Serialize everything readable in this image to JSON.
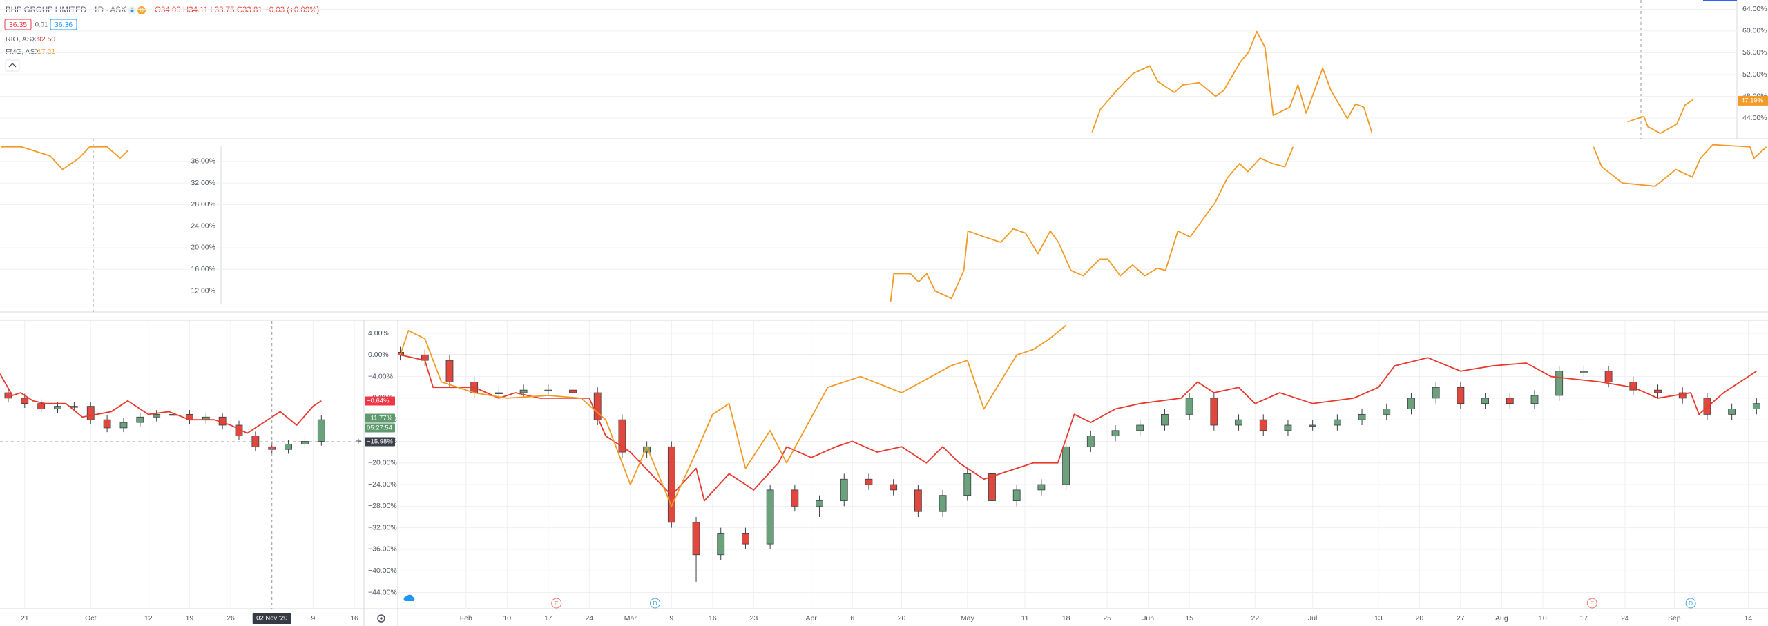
{
  "header": {
    "title": "BHP GROUP LIMITED · 1D · ASX",
    "status": "D",
    "ohlc": "O34.09 H34.11 L33.75 C33.81 +0.03 (+0.09%)",
    "bid": "36.35",
    "spread": "0.01",
    "ask": "36.36"
  },
  "chart_data": [
    {
      "type": "candlestick",
      "xlim": [
        -0.3,
        166.4
      ],
      "ylim": [
        -47,
        6.3
      ],
      "grid": true,
      "baseline": 0,
      "up_color": "#6ba17b",
      "down_color": "#e0483d",
      "xticks": [
        {
          "value": 8,
          "label": "Feb"
        },
        {
          "value": 13,
          "label": "10"
        },
        {
          "value": 18,
          "label": "17"
        },
        {
          "value": 23,
          "label": "24"
        },
        {
          "value": 28,
          "label": "Mar"
        },
        {
          "value": 33,
          "label": "9"
        },
        {
          "value": 38,
          "label": "16"
        },
        {
          "value": 43,
          "label": "23"
        },
        {
          "value": 50,
          "label": "Apr"
        },
        {
          "value": 55,
          "label": "6"
        },
        {
          "value": 61,
          "label": "20"
        },
        {
          "value": 69,
          "label": "May"
        },
        {
          "value": 76,
          "label": "11"
        },
        {
          "value": 81,
          "label": "18"
        },
        {
          "value": 86,
          "label": "25"
        },
        {
          "value": 91,
          "label": "Jun"
        },
        {
          "value": 96,
          "label": "15"
        },
        {
          "value": 104,
          "label": "22"
        },
        {
          "value": 111,
          "label": "Jul"
        },
        {
          "value": 119,
          "label": "13"
        },
        {
          "value": 124,
          "label": "20"
        },
        {
          "value": 129,
          "label": "27"
        },
        {
          "value": 134,
          "label": "Aug"
        },
        {
          "value": 139,
          "label": "10"
        },
        {
          "value": 144,
          "label": "17"
        },
        {
          "value": 149,
          "label": "24"
        },
        {
          "value": 155,
          "label": "Sep"
        },
        {
          "value": 164,
          "label": "14"
        }
      ],
      "yticks": [
        {
          "value": 4,
          "label": "4.00%"
        },
        {
          "value": 0,
          "label": "0.00%"
        },
        {
          "value": -4,
          "label": "−4.00%"
        },
        {
          "value": -8,
          "label": "−8.00%"
        },
        {
          "value": -12,
          "label": "−12.00%"
        },
        {
          "value": -16,
          "label": "−16.00%"
        },
        {
          "value": -20,
          "label": "−20.00%"
        },
        {
          "value": -24,
          "label": "−24.00%"
        },
        {
          "value": -28,
          "label": "−28.00%"
        },
        {
          "value": -32,
          "label": "−32.00%"
        },
        {
          "value": -36,
          "label": "−36.00%"
        },
        {
          "value": -40,
          "label": "−40.00%"
        },
        {
          "value": -44,
          "label": "−44.00%"
        }
      ],
      "candles": {
        "x": [
          0,
          3,
          6,
          9,
          12,
          15,
          18,
          21,
          24,
          27,
          30,
          33,
          36,
          39,
          42,
          45,
          48,
          51,
          54,
          57,
          60,
          63,
          66,
          69,
          72,
          75,
          78,
          81,
          84,
          87,
          90,
          93,
          96,
          99,
          102,
          105,
          108,
          111,
          114,
          117,
          120,
          123,
          126,
          129,
          132,
          135,
          138,
          141,
          144,
          147,
          150,
          153,
          156,
          159,
          162,
          165
        ],
        "open": [
          0.5,
          0,
          -1,
          -5,
          -7,
          -7,
          -6.5,
          -6.5,
          -7,
          -12,
          -18,
          -17,
          -31,
          -37,
          -33,
          -35,
          -25,
          -28,
          -27,
          -23,
          -24,
          -25,
          -29,
          -26,
          -22,
          -27,
          -25,
          -24,
          -17,
          -15,
          -14,
          -13,
          -11,
          -8,
          -13,
          -12,
          -14,
          -13,
          -13,
          -12,
          -11,
          -10,
          -8,
          -6,
          -9,
          -8,
          -9,
          -7.5,
          -3,
          -3,
          -5,
          -6.5,
          -7,
          -8,
          -11,
          -10
        ],
        "high": [
          1.5,
          1,
          0,
          -4,
          -6,
          -5.5,
          -5.5,
          -5.5,
          -6,
          -11,
          -16,
          -16,
          -30,
          -32,
          -32,
          -24,
          -24,
          -26,
          -22,
          -22,
          -23,
          -24,
          -25,
          -21,
          -21,
          -24,
          -23,
          -16,
          -14,
          -13,
          -12,
          -10,
          -7,
          -7,
          -11,
          -11,
          -12,
          -12,
          -11,
          -10,
          -9,
          -7,
          -5,
          -5,
          -7,
          -7,
          -6.5,
          -2,
          -2,
          -2,
          -4,
          -5.5,
          -6,
          -7,
          -9,
          -8
        ],
        "low": [
          -1,
          -2,
          -6,
          -8,
          -8,
          -8,
          -7.5,
          -8,
          -13,
          -19,
          -19,
          -32,
          -42,
          -38,
          -36,
          -36,
          -29,
          -30,
          -28,
          -25,
          -26,
          -30,
          -30,
          -27,
          -28,
          -28,
          -26,
          -25,
          -18,
          -16,
          -15,
          -14,
          -12,
          -14,
          -14,
          -15,
          -15,
          -14,
          -14,
          -13,
          -12,
          -11,
          -9,
          -10,
          -10,
          -10,
          -10,
          -8.5,
          -4,
          -6,
          -7.5,
          -8,
          -9,
          -12,
          -12,
          -11
        ],
        "close": [
          0,
          -1,
          -5,
          -7,
          -7,
          -6.5,
          -6.5,
          -7,
          -12,
          -18,
          -17,
          -31,
          -37,
          -33,
          -35,
          -25,
          -28,
          -27,
          -23,
          -24,
          -25,
          -29,
          -26,
          -22,
          -27,
          -25,
          -24,
          -17,
          -15,
          -14,
          -13,
          -11,
          -8,
          -13,
          -12,
          -14,
          -13,
          -13,
          -12,
          -11,
          -10,
          -8,
          -6,
          -9,
          -8,
          -9,
          -7.5,
          -3,
          -3,
          -5,
          -6.5,
          -7,
          -8,
          -11,
          -10,
          -9
        ]
      },
      "series": [
        {
          "name": "RIO, ASX",
          "legend_value": "92.50",
          "color": "#e8392e",
          "x": [
            0,
            3,
            4,
            9,
            12,
            14,
            17,
            20,
            23,
            25,
            28,
            33,
            36,
            37,
            40,
            43,
            46,
            47,
            50,
            53,
            55,
            58,
            61,
            64,
            66,
            68,
            71,
            73,
            77,
            80,
            82,
            84,
            87,
            90,
            95,
            97,
            99,
            102,
            104,
            107,
            111,
            116,
            119,
            121,
            125,
            129,
            133,
            137,
            140,
            146,
            150,
            153,
            157,
            158,
            161,
            165
          ],
          "values": [
            0,
            -1,
            -6,
            -6,
            -8,
            -7,
            -8,
            -8,
            -8,
            -15,
            -18,
            -26,
            -21,
            -27,
            -22,
            -25,
            -20,
            -17,
            -19,
            -17,
            -16,
            -18,
            -17,
            -20,
            -17,
            -20,
            -23,
            -22,
            -20,
            -20,
            -11,
            -12.5,
            -10,
            -9,
            -8,
            -5,
            -7,
            -6,
            -9,
            -7,
            -9,
            -8,
            -6,
            -2,
            -0.5,
            -3,
            -2,
            -1.5,
            -4,
            -5,
            -6,
            -8,
            -7,
            -11,
            -7,
            -3
          ]
        },
        {
          "name": "FMG, ASX",
          "legend_value": "17.21",
          "color": "#f39a26",
          "x": [
            0,
            1,
            3,
            5,
            9,
            13,
            18,
            22,
            25,
            28,
            30,
            33,
            36,
            38,
            40,
            42,
            45,
            47,
            52,
            56,
            61,
            67,
            69,
            71,
            75,
            77,
            79,
            81
          ],
          "values": [
            0,
            4.5,
            3,
            -5,
            -7,
            -8,
            -7.5,
            -8,
            -12,
            -24,
            -17,
            -28,
            -18,
            -11,
            -9,
            -21,
            -14,
            -20,
            -6,
            -4,
            -7,
            -2,
            -1,
            -10,
            0,
            1,
            3,
            5.5
          ]
        }
      ],
      "events": [
        {
          "label": "E",
          "x": 19,
          "color": "#f0766c"
        },
        {
          "label": "D",
          "x": 31,
          "color": "#4aa3df"
        },
        {
          "label": "E",
          "x": 145,
          "color": "#f0766c"
        },
        {
          "label": "D",
          "x": 157,
          "color": "#4aa3df"
        }
      ],
      "price_labels": [
        {
          "label": "−0.64%",
          "color": "#f23645"
        },
        {
          "label": "−11.77%",
          "color": "#5e9a6e"
        },
        {
          "label": "05:27:54",
          "color": "#5e9a6e"
        },
        {
          "label": "−15.98%",
          "color": "#3b3f4a"
        }
      ]
    },
    {
      "type": "candlestick",
      "xlim": [
        -3,
        40.5
      ],
      "ylim": [
        -47,
        6.3
      ],
      "grid": true,
      "up_color": "#6ba17b",
      "down_color": "#e0483d",
      "xticks": [
        {
          "value": 0,
          "label": "21"
        },
        {
          "value": 8,
          "label": "Oct"
        },
        {
          "value": 15,
          "label": "12"
        },
        {
          "value": 20,
          "label": "19"
        },
        {
          "value": 25,
          "label": "26"
        },
        {
          "value": 35,
          "label": "9"
        },
        {
          "value": 40,
          "label": "16"
        }
      ],
      "crosshair_x": {
        "value": 30,
        "label": "02 Nov '20"
      },
      "candles": {
        "x": [
          -2,
          0,
          2,
          4,
          6,
          8,
          10,
          12,
          14,
          16,
          18,
          20,
          22,
          24,
          26,
          28,
          30,
          32,
          34,
          36
        ],
        "open": [
          -7,
          -8,
          -9,
          -10,
          -9.5,
          -9.5,
          -12,
          -13.5,
          -12.5,
          -11.5,
          -11,
          -11,
          -12,
          -11.5,
          -13,
          -15,
          -17,
          -17.5,
          -16.5,
          -16
        ],
        "high": [
          -6.2,
          -7.2,
          -8.2,
          -8.7,
          -8.7,
          -8.7,
          -11.2,
          -11.7,
          -10.7,
          -10.2,
          -10.2,
          -10.2,
          -10.7,
          -10.7,
          -12.2,
          -14.2,
          -16.2,
          -15.7,
          -15.2,
          -11.2
        ],
        "low": [
          -8.8,
          -9.8,
          -10.8,
          -10.8,
          -10.3,
          -12.8,
          -14.3,
          -14.3,
          -13.3,
          -12.3,
          -11.8,
          -12.8,
          -12.8,
          -13.8,
          -15.8,
          -17.8,
          -18.3,
          -18.3,
          -17.3,
          -16.8
        ],
        "close": [
          -8,
          -9,
          -10,
          -9.5,
          -9.5,
          -12,
          -13.5,
          -12.5,
          -11.5,
          -11,
          -11,
          -12,
          -11.5,
          -13,
          -15,
          -17,
          -17.5,
          -16.5,
          -16,
          -12
        ]
      },
      "series": [
        {
          "color": "#e8392e",
          "x": [
            -3,
            -1.5,
            -0.5,
            1,
            2.5,
            5,
            7,
            10.5,
            12.5,
            15,
            17.5,
            20,
            23,
            25,
            27,
            29,
            31,
            33,
            35,
            36
          ],
          "values": [
            -3.5,
            -7.5,
            -7,
            -8.5,
            -9,
            -9,
            -11.5,
            -10.5,
            -8.5,
            -11,
            -10.5,
            -12,
            -12,
            -13,
            -14.5,
            -12.5,
            -10.5,
            -13,
            -9.5,
            -8.5
          ]
        }
      ]
    },
    {
      "type": "line",
      "xlim": [
        -48.6,
        162.3
      ],
      "ylim": [
        40.2,
        65.7
      ],
      "grid": true,
      "yticks": [
        {
          "value": 64,
          "label": "64.00%"
        },
        {
          "value": 60,
          "label": "60.00%"
        },
        {
          "value": 56,
          "label": "56.00%"
        },
        {
          "value": 52,
          "label": "52.00%"
        },
        {
          "value": 48,
          "label": "48.00%"
        },
        {
          "value": 44,
          "label": "44.00%"
        }
      ],
      "series": [
        {
          "color": "#f39a26",
          "x": [
            84,
            85,
            87,
            89,
            91,
            92,
            94,
            95,
            97,
            99,
            100,
            102,
            103,
            104,
            105,
            106,
            108,
            109,
            110,
            112,
            113,
            115,
            116,
            117,
            118,
            130,
            149,
            151,
            151.5,
            153,
            155,
            156,
            157
          ],
          "values": [
            41.4,
            45.6,
            49.1,
            52.2,
            53.6,
            50.7,
            48.7,
            50.1,
            50.5,
            48.0,
            49.1,
            54.3,
            56.1,
            59.9,
            57.0,
            44.5,
            46.0,
            50.1,
            44.9,
            53.2,
            49.1,
            43.9,
            46.6,
            46.0,
            41.2,
            null,
            43.3,
            44.3,
            42.4,
            41.2,
            42.9,
            46.4,
            47.4
          ]
        }
      ],
      "last_label": {
        "value": 47.19,
        "label": "47.19%",
        "color": "#f39a26"
      }
    },
    {
      "type": "line",
      "xlim": [
        -48.6,
        166.2
      ],
      "ylim": [
        8.1,
        40.2
      ],
      "grid": true,
      "yticks": [
        {
          "value": 36,
          "label": "36.00%"
        },
        {
          "value": 32,
          "label": "32.00%"
        },
        {
          "value": 28,
          "label": "28.00%"
        },
        {
          "value": 24,
          "label": "24.00%"
        },
        {
          "value": 20,
          "label": "20.00%"
        },
        {
          "value": 16,
          "label": "16.00%"
        },
        {
          "value": 12,
          "label": "12.00%"
        }
      ],
      "series": [
        {
          "color": "#f39a26",
          "x": [
            -48.5,
            -46,
            -42.5,
            -41,
            -39,
            -37.7,
            -35.6,
            -34,
            -33,
            -30,
            59.6,
            60,
            62,
            63,
            64,
            65,
            67,
            68.5,
            69,
            71,
            73,
            74.5,
            76,
            77.5,
            79,
            80,
            81.5,
            83,
            85,
            86,
            87.5,
            89,
            90.5,
            92,
            93,
            94.5,
            96,
            97,
            98.5,
            99,
            100.5,
            102,
            103,
            104.5,
            106,
            107.5,
            108.5,
            120,
            145,
            146,
            148.5,
            152.5,
            155,
            157,
            158,
            159.5,
            164,
            164.5,
            166
          ],
          "values": [
            38.7,
            38.7,
            37,
            34.5,
            36.6,
            38.7,
            38.7,
            36.6,
            38.1,
            null,
            10,
            15.2,
            15.2,
            13.7,
            15.2,
            12,
            10.6,
            15.8,
            23.1,
            22,
            21,
            23.5,
            22.7,
            18.9,
            23.1,
            21,
            15.8,
            14.8,
            17.9,
            17.9,
            14.8,
            16.8,
            14.8,
            16.2,
            15.8,
            23.1,
            22,
            24.1,
            27.3,
            28.3,
            32.9,
            35.6,
            34.1,
            36.6,
            35.6,
            35,
            38.7,
            null,
            38.7,
            35,
            32,
            31.4,
            34.5,
            33.1,
            36.6,
            39.1,
            38.7,
            36.6,
            38.7
          ]
        }
      ]
    }
  ]
}
